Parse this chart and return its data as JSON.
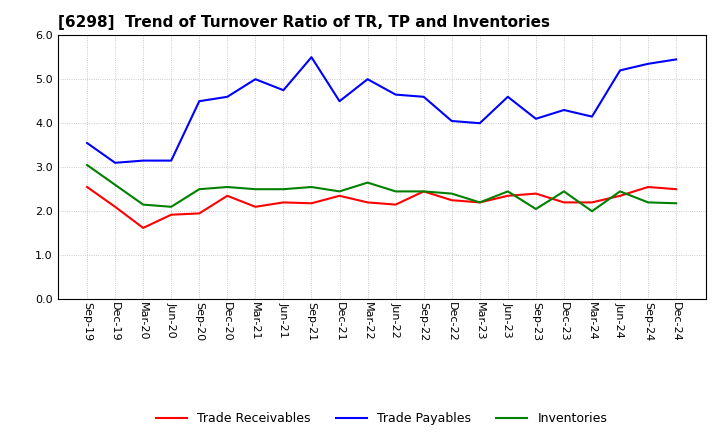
{
  "title": "[6298]  Trend of Turnover Ratio of TR, TP and Inventories",
  "x_labels": [
    "Sep-19",
    "Dec-19",
    "Mar-20",
    "Jun-20",
    "Sep-20",
    "Dec-20",
    "Mar-21",
    "Jun-21",
    "Sep-21",
    "Dec-21",
    "Mar-22",
    "Jun-22",
    "Sep-22",
    "Dec-22",
    "Mar-23",
    "Jun-23",
    "Sep-23",
    "Dec-23",
    "Mar-24",
    "Jun-24",
    "Sep-24",
    "Dec-24"
  ],
  "trade_receivables": [
    2.55,
    2.1,
    1.62,
    1.92,
    1.95,
    2.35,
    2.1,
    2.2,
    2.18,
    2.35,
    2.2,
    2.15,
    2.45,
    2.25,
    2.2,
    2.35,
    2.4,
    2.2,
    2.2,
    2.35,
    2.55,
    2.5
  ],
  "trade_payables": [
    3.55,
    3.1,
    3.15,
    3.15,
    4.5,
    4.6,
    5.0,
    4.75,
    5.5,
    4.5,
    5.0,
    4.65,
    4.6,
    4.05,
    4.0,
    4.6,
    4.1,
    4.3,
    4.15,
    5.2,
    5.35,
    5.45
  ],
  "inventories": [
    3.05,
    2.6,
    2.15,
    2.1,
    2.5,
    2.55,
    2.5,
    2.5,
    2.55,
    2.45,
    2.65,
    2.45,
    2.45,
    2.4,
    2.2,
    2.45,
    2.05,
    2.45,
    2.0,
    2.45,
    2.2,
    2.18
  ],
  "ylim": [
    0.0,
    6.0
  ],
  "yticks": [
    0.0,
    1.0,
    2.0,
    3.0,
    4.0,
    5.0,
    6.0
  ],
  "line_colors": {
    "trade_receivables": "#ff0000",
    "trade_payables": "#0000ff",
    "inventories": "#008000"
  },
  "legend_labels": [
    "Trade Receivables",
    "Trade Payables",
    "Inventories"
  ],
  "background_color": "#ffffff",
  "grid_color": "#bbbbbb",
  "title_fontsize": 11,
  "tick_fontsize": 8,
  "legend_fontsize": 9
}
